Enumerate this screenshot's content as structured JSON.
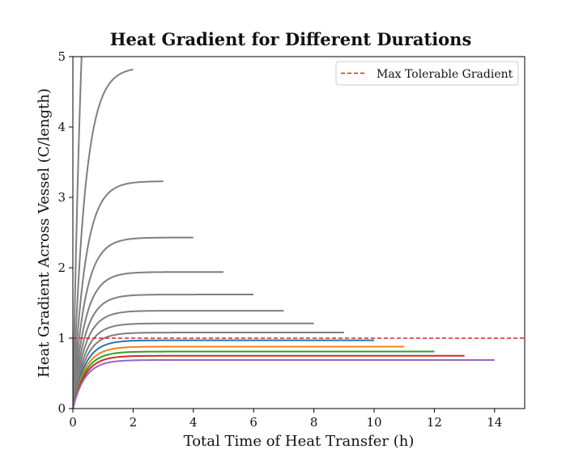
{
  "chart_data": {
    "type": "line",
    "title": "Heat Gradient for Different Durations",
    "xlabel": "Total Time of Heat Transfer (h)",
    "ylabel": "Heat Gradient Across Vessel (C/length)",
    "xlim": [
      0,
      15
    ],
    "ylim": [
      0,
      5
    ],
    "xticks": [
      "0",
      "2",
      "4",
      "6",
      "8",
      "10",
      "12",
      "14"
    ],
    "yticks": [
      "0",
      "1",
      "2",
      "3",
      "4",
      "5"
    ],
    "grid": false,
    "legend": {
      "position": "top-right",
      "entries": [
        "Max Tolerable Gradient"
      ]
    },
    "reference_line": {
      "y": 1.0,
      "color": "#d62728",
      "style": "dashed",
      "label": "Max Tolerable Gradient"
    },
    "curve_shape": "plateau = 9.7 / duration; value rises from 0 toward plateau, reaching ~99% within ~2 h",
    "series": [
      {
        "duration": 1,
        "plateau": 9.7,
        "color": "#7f7f7f"
      },
      {
        "duration": 2,
        "plateau": 4.85,
        "color": "#7f7f7f"
      },
      {
        "duration": 3,
        "plateau": 3.23,
        "color": "#7f7f7f"
      },
      {
        "duration": 4,
        "plateau": 2.43,
        "color": "#7f7f7f"
      },
      {
        "duration": 5,
        "plateau": 1.94,
        "color": "#7f7f7f"
      },
      {
        "duration": 6,
        "plateau": 1.62,
        "color": "#7f7f7f"
      },
      {
        "duration": 7,
        "plateau": 1.39,
        "color": "#7f7f7f"
      },
      {
        "duration": 8,
        "plateau": 1.21,
        "color": "#7f7f7f"
      },
      {
        "duration": 9,
        "plateau": 1.08,
        "color": "#7f7f7f"
      },
      {
        "duration": 10,
        "plateau": 0.97,
        "color": "#1f77b4"
      },
      {
        "duration": 11,
        "plateau": 0.88,
        "color": "#ff7f0e"
      },
      {
        "duration": 12,
        "plateau": 0.81,
        "color": "#2ca02c"
      },
      {
        "duration": 13,
        "plateau": 0.75,
        "color": "#d62728"
      },
      {
        "duration": 14,
        "plateau": 0.69,
        "color": "#9467bd"
      }
    ]
  }
}
